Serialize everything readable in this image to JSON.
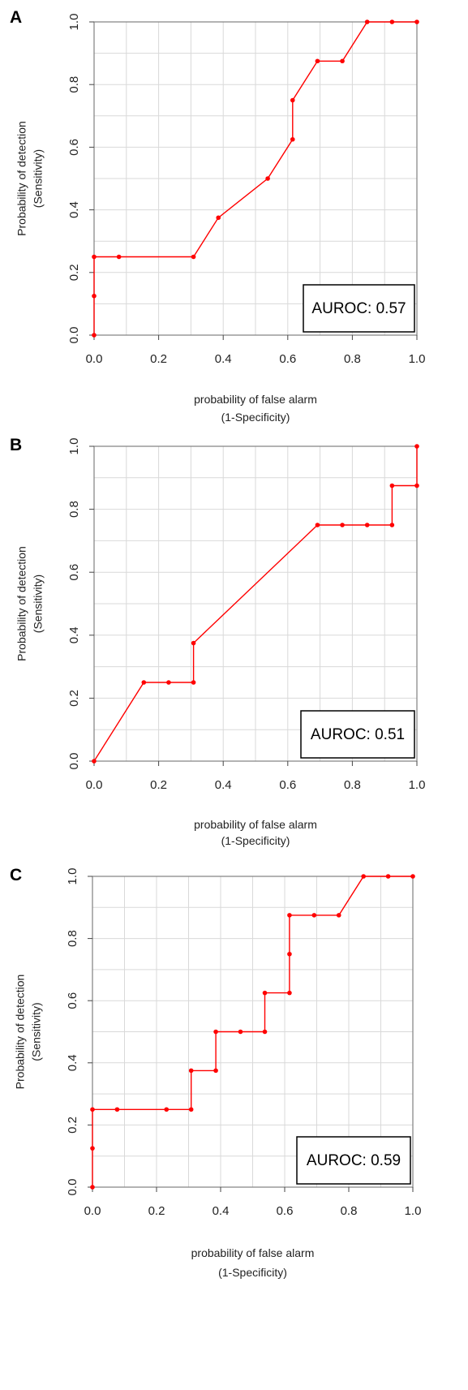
{
  "colors": {
    "curve": "#ff0000",
    "grid": "#d9d9d9",
    "frame": "#808080",
    "text": "#222222"
  },
  "chart_data": [
    {
      "type": "line",
      "panel": "A",
      "xlabel": [
        "probability of false alarm",
        "(1-Specificity)"
      ],
      "ylabel": [
        "Probability of detection",
        "(Sensitivity)"
      ],
      "xlim": [
        0,
        1
      ],
      "ylim": [
        0,
        1
      ],
      "x_ticks": [
        "0.0",
        "0.2",
        "0.4",
        "0.6",
        "0.8",
        "1.0"
      ],
      "y_ticks": [
        "0.0",
        "0.2",
        "0.4",
        "0.6",
        "0.8",
        "1.0"
      ],
      "grid": true,
      "annotation": "AUROC: 0.57",
      "x": [
        0,
        0,
        0,
        0.077,
        0.308,
        0.385,
        0.538,
        0.615,
        0.615,
        0.692,
        0.769,
        0.846,
        0.923,
        1.0
      ],
      "y": [
        0,
        0.125,
        0.25,
        0.25,
        0.25,
        0.375,
        0.5,
        0.625,
        0.75,
        0.875,
        0.875,
        1.0,
        1.0,
        1.0
      ]
    },
    {
      "type": "line",
      "panel": "B",
      "xlabel": [
        "probability of false alarm",
        "(1-Specificity)"
      ],
      "ylabel": [
        "Probability of detection",
        "(Sensitivity)"
      ],
      "xlim": [
        0,
        1
      ],
      "ylim": [
        0,
        1
      ],
      "x_ticks": [
        "0.0",
        "0.2",
        "0.4",
        "0.6",
        "0.8",
        "1.0"
      ],
      "y_ticks": [
        "0.0",
        "0.2",
        "0.4",
        "0.6",
        "0.8",
        "1.0"
      ],
      "grid": true,
      "annotation": "AUROC: 0.51",
      "x": [
        0,
        0.154,
        0.231,
        0.308,
        0.308,
        0.692,
        0.769,
        0.846,
        0.923,
        0.923,
        1.0,
        1.0
      ],
      "y": [
        0,
        0.25,
        0.25,
        0.25,
        0.375,
        0.75,
        0.75,
        0.75,
        0.75,
        0.875,
        0.875,
        1.0
      ]
    },
    {
      "type": "line",
      "panel": "C",
      "xlabel": [
        "probability of false alarm",
        "(1-Specificity)"
      ],
      "ylabel": [
        "Probability of detection",
        "(Sensitivity)"
      ],
      "xlim": [
        0,
        1
      ],
      "ylim": [
        0,
        1
      ],
      "x_ticks": [
        "0.0",
        "0.2",
        "0.4",
        "0.6",
        "0.8",
        "1.0"
      ],
      "y_ticks": [
        "0.0",
        "0.2",
        "0.4",
        "0.6",
        "0.8",
        "1.0"
      ],
      "grid": true,
      "annotation": "AUROC: 0.59",
      "x": [
        0,
        0,
        0,
        0.077,
        0.231,
        0.308,
        0.308,
        0.385,
        0.385,
        0.462,
        0.538,
        0.538,
        0.615,
        0.615,
        0.615,
        0.692,
        0.769,
        0.846,
        0.923,
        1.0
      ],
      "y": [
        0,
        0.125,
        0.25,
        0.25,
        0.25,
        0.25,
        0.375,
        0.375,
        0.5,
        0.5,
        0.5,
        0.625,
        0.625,
        0.75,
        0.875,
        0.875,
        0.875,
        1.0,
        1.0,
        1.0
      ]
    }
  ]
}
